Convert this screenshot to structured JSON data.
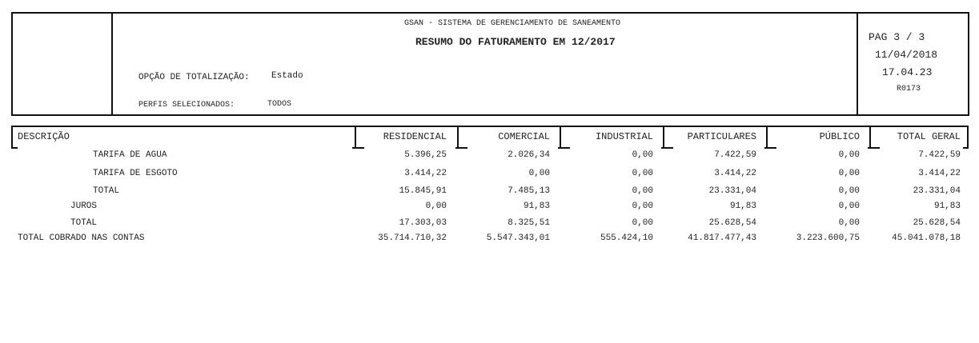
{
  "header": {
    "system": "GSAN - SISTEMA DE GERENCIAMENTO DE SANEAMENTO",
    "title": "RESUMO DO FATURAMENTO EM  12/2017",
    "totalizacao_label": "OPÇÃO DE TOTALIZAÇÃO:",
    "totalizacao_value": "Estado",
    "perfis_label": "PERFIS SELECIONADOS:",
    "perfis_value": "TODOS",
    "page": "PAG 3 / 3",
    "date": "11/04/2018",
    "time": "17.04.23",
    "report_code": "R0173"
  },
  "table": {
    "columns": [
      "DESCRIÇÃO",
      "RESIDENCIAL",
      "COMERCIAL",
      "INDUSTRIAL",
      "PARTICULARES",
      "PÚBLICO",
      "TOTAL GERAL"
    ],
    "rows": [
      {
        "label": "TARIFA DE AGUA",
        "values": [
          "5.396,25",
          "2.026,34",
          "0,00",
          "7.422,59",
          "0,00",
          "7.422,59"
        ]
      },
      {
        "label": "TARIFA DE ESGOTO",
        "values": [
          "3.414,22",
          "0,00",
          "0,00",
          "3.414,22",
          "0,00",
          "3.414,22"
        ]
      },
      {
        "label": "TOTAL",
        "values": [
          "15.845,91",
          "7.485,13",
          "0,00",
          "23.331,04",
          "0,00",
          "23.331,04"
        ]
      },
      {
        "label": "JUROS",
        "values": [
          "0,00",
          "91,83",
          "0,00",
          "91,83",
          "0,00",
          "91,83"
        ]
      },
      {
        "label": "TOTAL",
        "values": [
          "17.303,03",
          "8.325,51",
          "0,00",
          "25.628,54",
          "0,00",
          "25.628,54"
        ]
      },
      {
        "label": "TOTAL COBRADO NAS CONTAS",
        "values": [
          "35.714.710,32",
          "5.547.343,01",
          "555.424,10",
          "41.817.477,43",
          "3.223.600,75",
          "45.041.078,18"
        ]
      }
    ]
  }
}
